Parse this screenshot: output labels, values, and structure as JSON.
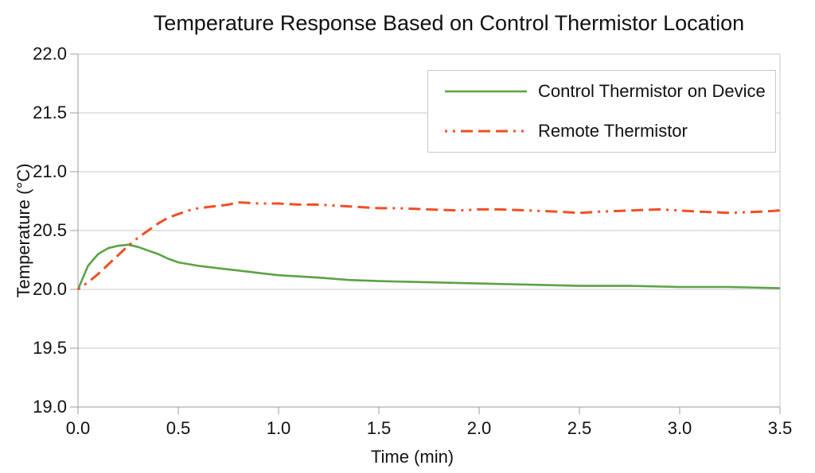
{
  "chart_data": {
    "type": "line",
    "title": "Temperature Response Based on Control Thermistor Location",
    "xlabel": "Time (min)",
    "ylabel": "Temperature (°C)",
    "xlim": [
      0,
      3.5
    ],
    "ylim": [
      19.0,
      22.0
    ],
    "x_ticks": [
      "0.0",
      "0.5",
      "1.0",
      "1.5",
      "2.0",
      "2.5",
      "3.0",
      "3.5"
    ],
    "x_tick_values": [
      0,
      0.5,
      1.0,
      1.5,
      2.0,
      2.5,
      3.0,
      3.5
    ],
    "y_ticks": [
      "19.0",
      "19.5",
      "20.0",
      "20.5",
      "21.0",
      "21.5",
      "22.0"
    ],
    "y_tick_values": [
      19.0,
      19.5,
      20.0,
      20.5,
      21.0,
      21.5,
      22.0
    ],
    "grid": "horizontal-only",
    "grid_color": "#c9c9c9",
    "axis_color": "#9b9b9b",
    "legend_position": "top-right-inside",
    "series": [
      {
        "name": "Control Thermistor on Device",
        "color": "#5aa345",
        "style": "solid",
        "points": [
          [
            0.0,
            20.0
          ],
          [
            0.05,
            20.2
          ],
          [
            0.1,
            20.3
          ],
          [
            0.15,
            20.35
          ],
          [
            0.2,
            20.37
          ],
          [
            0.25,
            20.38
          ],
          [
            0.3,
            20.36
          ],
          [
            0.35,
            20.33
          ],
          [
            0.4,
            20.3
          ],
          [
            0.45,
            20.26
          ],
          [
            0.5,
            20.23
          ],
          [
            0.6,
            20.2
          ],
          [
            0.7,
            20.18
          ],
          [
            0.8,
            20.16
          ],
          [
            0.9,
            20.14
          ],
          [
            1.0,
            20.12
          ],
          [
            1.1,
            20.11
          ],
          [
            1.2,
            20.1
          ],
          [
            1.35,
            20.08
          ],
          [
            1.5,
            20.07
          ],
          [
            1.75,
            20.06
          ],
          [
            2.0,
            20.05
          ],
          [
            2.25,
            20.04
          ],
          [
            2.5,
            20.03
          ],
          [
            2.75,
            20.03
          ],
          [
            3.0,
            20.02
          ],
          [
            3.25,
            20.02
          ],
          [
            3.5,
            20.01
          ]
        ]
      },
      {
        "name": "Remote Thermistor",
        "color": "#f24e26",
        "style": "dash-dash-dash-dot-dot",
        "points": [
          [
            0.0,
            20.0
          ],
          [
            0.05,
            20.06
          ],
          [
            0.1,
            20.13
          ],
          [
            0.15,
            20.21
          ],
          [
            0.2,
            20.29
          ],
          [
            0.25,
            20.37
          ],
          [
            0.3,
            20.44
          ],
          [
            0.35,
            20.5
          ],
          [
            0.4,
            20.56
          ],
          [
            0.45,
            20.61
          ],
          [
            0.5,
            20.64
          ],
          [
            0.55,
            20.67
          ],
          [
            0.6,
            20.69
          ],
          [
            0.65,
            20.7
          ],
          [
            0.7,
            20.71
          ],
          [
            0.75,
            20.72
          ],
          [
            0.8,
            20.74
          ],
          [
            0.9,
            20.73
          ],
          [
            1.0,
            20.73
          ],
          [
            1.1,
            20.72
          ],
          [
            1.2,
            20.72
          ],
          [
            1.3,
            20.71
          ],
          [
            1.4,
            20.7
          ],
          [
            1.5,
            20.69
          ],
          [
            1.6,
            20.69
          ],
          [
            1.75,
            20.68
          ],
          [
            1.9,
            20.67
          ],
          [
            2.0,
            20.68
          ],
          [
            2.1,
            20.68
          ],
          [
            2.25,
            20.67
          ],
          [
            2.4,
            20.66
          ],
          [
            2.5,
            20.65
          ],
          [
            2.6,
            20.66
          ],
          [
            2.75,
            20.67
          ],
          [
            2.9,
            20.68
          ],
          [
            3.0,
            20.67
          ],
          [
            3.1,
            20.66
          ],
          [
            3.25,
            20.65
          ],
          [
            3.4,
            20.66
          ],
          [
            3.5,
            20.67
          ]
        ]
      }
    ]
  }
}
